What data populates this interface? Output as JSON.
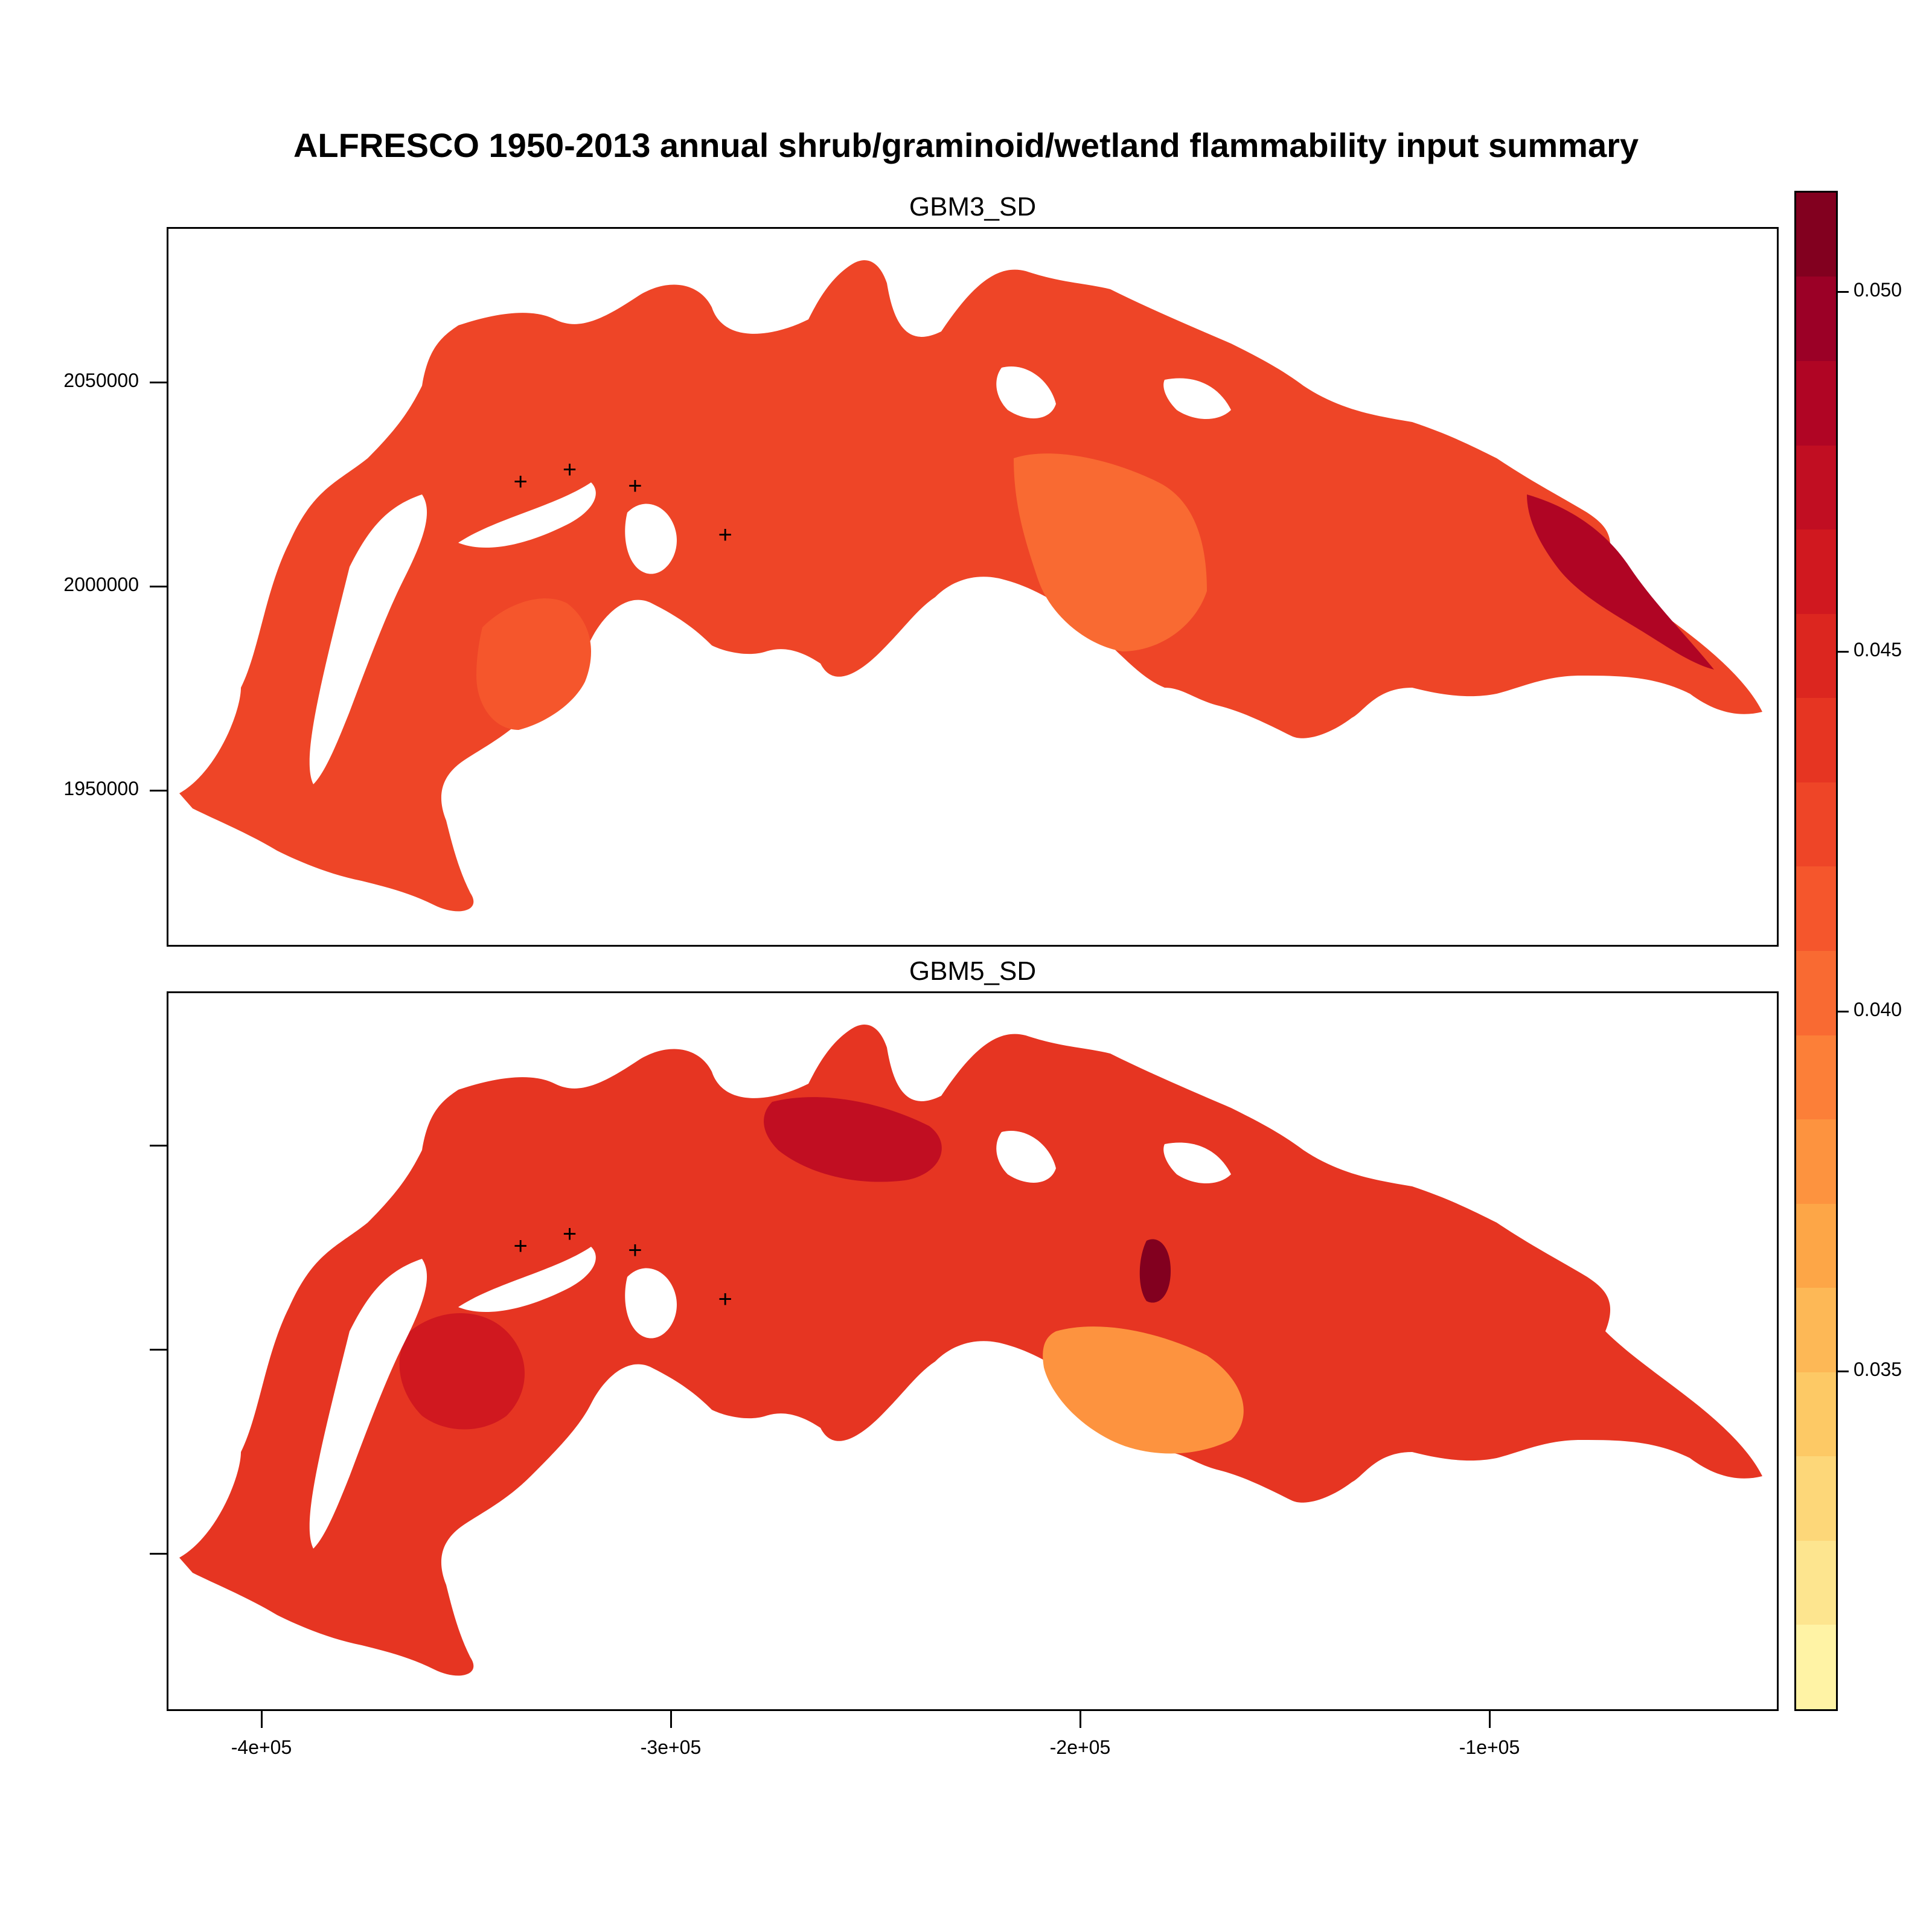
{
  "title": "ALFRESCO 1950-2013 annual shrub/graminoid/wetland flammability input summary",
  "panels": [
    {
      "label": "GBM3_SD"
    },
    {
      "label": "GBM5_SD"
    }
  ],
  "y_axis": {
    "ticks": [
      "2050000",
      "2000000",
      "1950000"
    ],
    "tick_values": [
      2050000,
      2000000,
      1950000
    ]
  },
  "x_axis": {
    "ticks": [
      "-4e+05",
      "-3e+05",
      "-2e+05",
      "-1e+05"
    ],
    "tick_values": [
      -400000,
      -300000,
      -200000,
      -100000
    ]
  },
  "colorbar": {
    "ticks": [
      "0.050",
      "0.045",
      "0.040",
      "0.035"
    ],
    "tick_values": [
      0.05,
      0.045,
      0.04,
      0.035
    ],
    "colors": [
      "#fff3a5",
      "#fde58f",
      "#fdd779",
      "#fdc965",
      "#fdb856",
      "#fda647",
      "#fd933f",
      "#fc7f38",
      "#f96a32",
      "#f5562c",
      "#ee4527",
      "#e63522",
      "#dc261f",
      "#d0181f",
      "#c10e22",
      "#b00524",
      "#9b0026",
      "#82001f"
    ]
  },
  "markers": {
    "symbol": "+",
    "points": [
      [
        -337000,
        2026000
      ],
      [
        -325000,
        2029000
      ],
      [
        -309000,
        2025000
      ],
      [
        -287000,
        2013000
      ]
    ]
  }
}
